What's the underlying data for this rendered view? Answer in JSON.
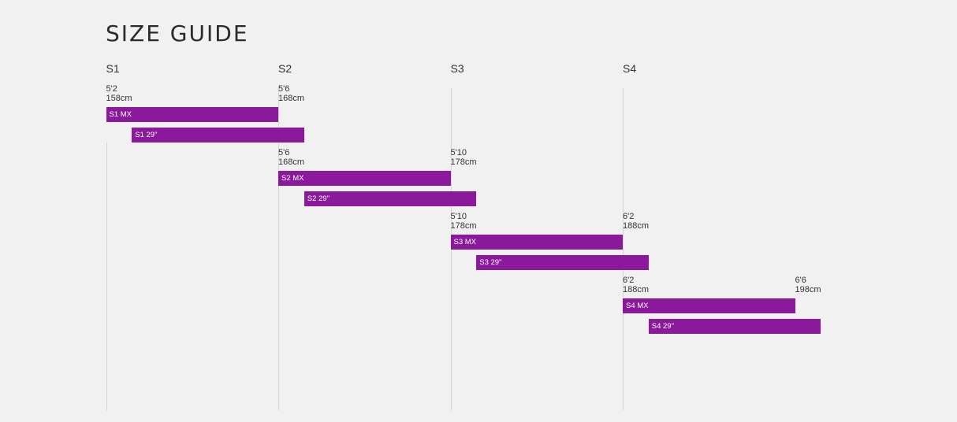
{
  "title": "SIZE GUIDE",
  "colors": {
    "bar": "#8a1a9b",
    "gridline": "#d4d4d4",
    "background": "#f1f1f1"
  },
  "chart_data": {
    "type": "bar",
    "orientation": "horizontal-range",
    "title": "SIZE GUIDE",
    "columns": [
      "S1",
      "S2",
      "S3",
      "S4"
    ],
    "axis_unit": "cm",
    "axis_range_cm": [
      158,
      198
    ],
    "groups": [
      {
        "size": "S1",
        "min_label": {
          "imperial": "5'2",
          "metric": "158cm"
        },
        "max_label": {
          "imperial": "5'6",
          "metric": "168cm"
        },
        "bars": [
          {
            "label": "S1 MX",
            "start_cm": 158,
            "end_cm": 168
          },
          {
            "label": "S1 29\"",
            "start_cm": 159.5,
            "end_cm": 169.5
          }
        ]
      },
      {
        "size": "S2",
        "min_label": {
          "imperial": "5'6",
          "metric": "168cm"
        },
        "max_label": {
          "imperial": "5'10",
          "metric": "178cm"
        },
        "bars": [
          {
            "label": "S2 MX",
            "start_cm": 168,
            "end_cm": 178
          },
          {
            "label": "S2 29\"",
            "start_cm": 169.5,
            "end_cm": 179.5
          }
        ]
      },
      {
        "size": "S3",
        "min_label": {
          "imperial": "5'10",
          "metric": "178cm"
        },
        "max_label": {
          "imperial": "6'2",
          "metric": "188cm"
        },
        "bars": [
          {
            "label": "S3 MX",
            "start_cm": 178,
            "end_cm": 188
          },
          {
            "label": "S3 29\"",
            "start_cm": 179.5,
            "end_cm": 189.5
          }
        ]
      },
      {
        "size": "S4",
        "min_label": {
          "imperial": "6'2",
          "metric": "188cm"
        },
        "max_label": {
          "imperial": "6'6",
          "metric": "198cm"
        },
        "bars": [
          {
            "label": "S4 MX",
            "start_cm": 188,
            "end_cm": 198
          },
          {
            "label": "S4 29\"",
            "start_cm": 189.5,
            "end_cm": 199.5
          }
        ]
      }
    ]
  }
}
